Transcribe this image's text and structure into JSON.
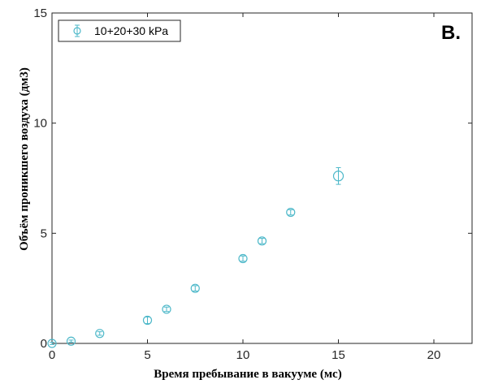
{
  "chart_data": {
    "type": "scatter",
    "panel_label": "B.",
    "xlabel": "Время пребывание в вакууме (мс)",
    "ylabel": "Объём проникшего воздуха (дм3)",
    "xlim": [
      0,
      22
    ],
    "ylim": [
      0,
      15
    ],
    "xticks": [
      0,
      5,
      10,
      15,
      20
    ],
    "yticks": [
      0,
      5,
      10,
      15
    ],
    "grid": false,
    "legend_position": "top-left",
    "series_color": "#4db8c9",
    "series": [
      {
        "name": "10+20+30 kPa",
        "x": [
          0,
          1,
          2.5,
          5,
          6,
          7.5,
          10,
          11,
          12.5,
          15
        ],
        "y": [
          0,
          0.1,
          0.45,
          1.05,
          1.55,
          2.5,
          3.85,
          4.65,
          5.95,
          7.6
        ],
        "err": [
          0.05,
          0.05,
          0.08,
          0.15,
          0.1,
          0.12,
          0.12,
          0.12,
          0.12,
          0.38
        ]
      }
    ]
  }
}
